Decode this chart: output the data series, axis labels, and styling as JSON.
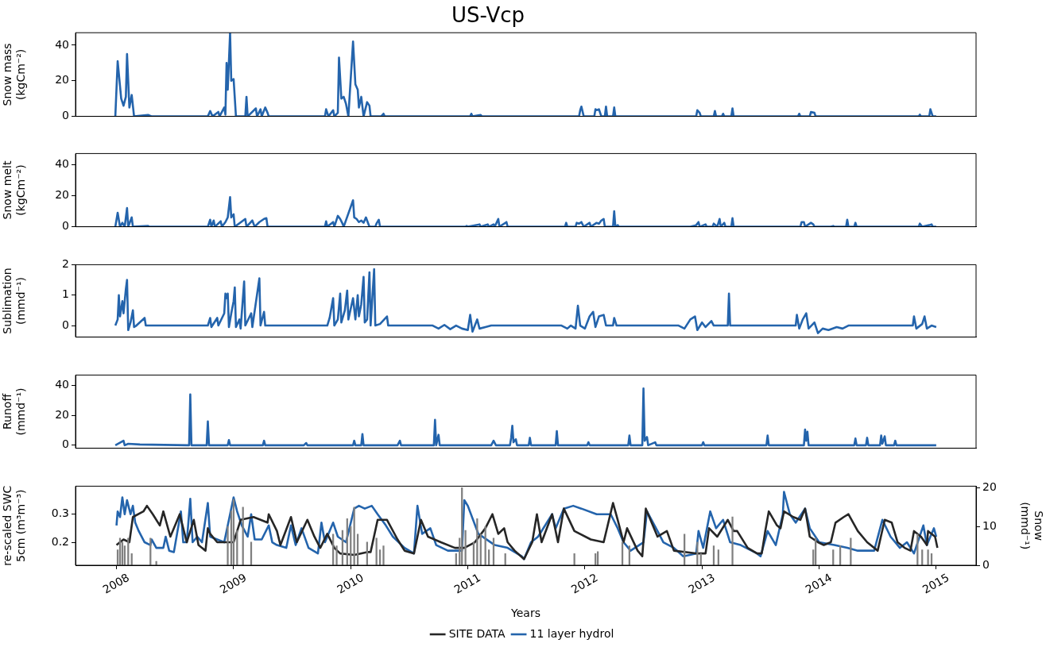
{
  "chart_data": [
    {
      "type": "line",
      "title": "US-Vcp",
      "ylabel": "Snow mass\n(kgCm⁻²)",
      "xlim": [
        2007.65,
        2015.34
      ],
      "ylim": [
        0,
        47
      ],
      "yticks": [
        0,
        20,
        40
      ],
      "tick_labels": "y",
      "series": [
        {
          "color": "#2464ac",
          "x": [
            2007.99,
            2008.01,
            2008.04,
            2008.06,
            2008.08,
            2008.09,
            2008.11,
            2008.13,
            2008.15,
            2008.27,
            2008.3,
            2008.78,
            2008.8,
            2008.82,
            2008.87,
            2008.88,
            2008.92,
            2008.93,
            2008.94,
            2008.95,
            2008.97,
            2008.98,
            2009.0,
            2009.02,
            2009.1,
            2009.11,
            2009.12,
            2009.19,
            2009.2,
            2009.23,
            2009.24,
            2009.27,
            2009.29,
            2009.3,
            2009.78,
            2009.79,
            2009.81,
            2009.85,
            2009.86,
            2009.89,
            2009.9,
            2009.92,
            2009.94,
            2009.96,
            2009.98,
            2010.02,
            2010.04,
            2010.06,
            2010.07,
            2010.09,
            2010.11,
            2010.14,
            2010.16,
            2010.17,
            2010.26,
            2010.28,
            2010.29,
            2011.02,
            2011.03,
            2011.04,
            2011.11,
            2011.12,
            2011.95,
            2011.96,
            2011.97,
            2011.99,
            2012.08,
            2012.09,
            2012.1,
            2012.12,
            2012.14,
            2012.17,
            2012.18,
            2012.19,
            2012.24,
            2012.25,
            2012.26,
            2012.95,
            2012.96,
            2012.98,
            2012.99,
            2013.1,
            2013.11,
            2013.12,
            2013.17,
            2013.18,
            2013.19,
            2013.25,
            2013.26,
            2013.27,
            2013.82,
            2013.83,
            2013.84,
            2013.92,
            2013.93,
            2013.96,
            2013.97,
            2014.85,
            2014.86,
            2014.87,
            2014.94,
            2014.95,
            2014.97,
            2015.0
          ],
          "values": [
            0,
            31,
            10,
            6,
            11,
            35,
            5,
            12,
            0,
            0.8,
            0,
            0,
            3,
            0,
            2.5,
            0,
            5,
            1,
            30,
            15,
            47,
            20,
            21,
            0,
            0,
            11,
            0,
            4.5,
            0,
            4,
            0,
            5,
            2,
            0,
            0,
            4,
            0,
            3.5,
            0,
            2,
            33,
            10,
            11,
            7,
            0,
            42,
            18,
            15,
            5,
            11,
            0,
            8,
            6,
            0,
            0,
            1.5,
            0,
            0,
            1.5,
            0,
            0.8,
            0,
            0,
            3.5,
            5.5,
            0,
            0,
            4,
            3.5,
            4,
            0,
            0,
            5.5,
            0,
            0,
            5,
            0,
            0,
            3.5,
            2,
            0,
            0,
            3,
            0,
            0,
            1.5,
            0,
            0,
            4.5,
            0,
            0,
            1.5,
            0,
            0,
            2.5,
            2,
            0,
            0,
            1,
            0,
            0,
            4,
            0,
            0
          ]
        }
      ]
    },
    {
      "type": "line",
      "ylabel": "Snow melt\n(kgCm⁻²)",
      "xlim": [
        2007.65,
        2015.34
      ],
      "ylim": [
        0,
        47
      ],
      "yticks": [
        0,
        20,
        40
      ],
      "tick_labels": "y",
      "series": [
        {
          "color": "#2464ac",
          "x": [
            2007.99,
            2008.01,
            2008.03,
            2008.05,
            2008.07,
            2008.09,
            2008.1,
            2008.12,
            2008.13,
            2008.14,
            2008.27,
            2008.28,
            2008.78,
            2008.8,
            2008.81,
            2008.83,
            2008.84,
            2008.89,
            2008.9,
            2008.93,
            2008.95,
            2008.97,
            2008.98,
            2009.0,
            2009.01,
            2009.1,
            2009.11,
            2009.16,
            2009.18,
            2009.22,
            2009.26,
            2009.28,
            2009.29,
            2009.78,
            2009.79,
            2009.8,
            2009.85,
            2009.86,
            2009.89,
            2009.91,
            2009.93,
            2009.94,
            2010.02,
            2010.03,
            2010.05,
            2010.07,
            2010.09,
            2010.11,
            2010.13,
            2010.15,
            2010.16,
            2010.21,
            2010.22,
            2010.24,
            2010.25,
            2010.98,
            2010.99,
            2011.0,
            2011.1,
            2011.11,
            2011.17,
            2011.18,
            2011.22,
            2011.23,
            2011.26,
            2011.27,
            2011.33,
            2011.34,
            2011.83,
            2011.84,
            2011.85,
            2011.92,
            2011.93,
            2011.95,
            2011.97,
            2011.99,
            2012.04,
            2012.05,
            2012.1,
            2012.12,
            2012.14,
            2012.16,
            2012.17,
            2012.24,
            2012.25,
            2012.26,
            2012.28,
            2012.29,
            2012.9,
            2012.95,
            2012.97,
            2012.98,
            2013.03,
            2013.04,
            2013.09,
            2013.1,
            2013.13,
            2013.15,
            2013.16,
            2013.19,
            2013.2,
            2013.25,
            2013.26,
            2013.27,
            2013.84,
            2013.85,
            2013.87,
            2013.88,
            2013.91,
            2013.93,
            2013.95,
            2013.96,
            2014.1,
            2014.12,
            2014.13,
            2014.23,
            2014.24,
            2014.25,
            2014.3,
            2014.31,
            2014.32,
            2014.85,
            2014.86,
            2014.88,
            2014.94,
            2014.96,
            2014.97,
            2015.0
          ],
          "values": [
            0,
            9,
            0,
            2.5,
            0,
            12,
            0,
            4,
            6,
            0,
            0.5,
            0,
            0,
            4.5,
            0,
            4,
            0,
            3.5,
            0,
            3,
            6,
            19,
            6,
            8,
            0,
            5,
            0,
            4,
            0,
            3,
            5,
            5.5,
            0,
            0,
            3.5,
            0,
            3,
            0,
            7,
            5,
            2,
            0,
            17,
            6,
            5,
            3,
            4,
            2.5,
            6,
            2,
            0,
            0,
            2,
            4.5,
            0,
            0,
            0.5,
            0,
            1.5,
            0,
            1.5,
            0,
            1.5,
            0,
            5,
            0,
            3,
            0,
            0,
            2.5,
            0,
            0,
            2.5,
            2,
            3,
            0,
            2.5,
            0,
            2.5,
            2,
            4,
            5,
            0,
            0,
            10,
            0,
            1,
            0,
            0,
            1,
            3,
            0,
            1.5,
            0,
            0,
            2,
            0,
            5,
            0,
            2.5,
            0,
            0,
            5.5,
            0,
            0,
            3,
            3,
            0,
            1.5,
            2.5,
            1.5,
            0,
            0,
            0.5,
            0,
            0,
            4.5,
            0,
            0,
            2.5,
            0,
            0,
            2,
            0,
            1,
            1.5,
            0,
            0
          ]
        }
      ]
    },
    {
      "type": "line",
      "ylabel": "Sublimation\n(mmd⁻¹)",
      "xlim": [
        2007.65,
        2015.34
      ],
      "ylim": [
        -0.38,
        2
      ],
      "yticks": [
        0,
        1,
        2
      ],
      "tick_labels": "y",
      "series": [
        {
          "color": "#2464ac",
          "x": [
            2007.99,
            2008.01,
            2008.02,
            2008.03,
            2008.05,
            2008.06,
            2008.08,
            2008.09,
            2008.1,
            2008.12,
            2008.14,
            2008.15,
            2008.17,
            2008.24,
            2008.25,
            2008.3,
            2008.78,
            2008.8,
            2008.81,
            2008.86,
            2008.87,
            2008.92,
            2008.93,
            2008.94,
            2008.95,
            2008.96,
            2008.98,
            2009.0,
            2009.01,
            2009.02,
            2009.05,
            2009.06,
            2009.09,
            2009.1,
            2009.15,
            2009.16,
            2009.22,
            2009.23,
            2009.26,
            2009.27,
            2009.3,
            2009.8,
            2009.82,
            2009.85,
            2009.86,
            2009.89,
            2009.91,
            2009.92,
            2009.95,
            2009.97,
            2009.98,
            2010.02,
            2010.04,
            2010.06,
            2010.07,
            2010.09,
            2010.11,
            2010.12,
            2010.14,
            2010.16,
            2010.17,
            2010.2,
            2010.21,
            2010.25,
            2010.31,
            2010.32,
            2010.7,
            2010.75,
            2010.8,
            2010.85,
            2010.9,
            2010.95,
            2011.0,
            2011.02,
            2011.04,
            2011.08,
            2011.1,
            2011.15,
            2011.2,
            2011.35,
            2011.8,
            2011.85,
            2011.88,
            2011.92,
            2011.94,
            2011.96,
            2012.0,
            2012.04,
            2012.07,
            2012.09,
            2012.12,
            2012.16,
            2012.18,
            2012.24,
            2012.25,
            2012.27,
            2012.8,
            2012.85,
            2012.9,
            2012.94,
            2012.96,
            2013.0,
            2013.03,
            2013.08,
            2013.1,
            2013.22,
            2013.23,
            2013.24,
            2013.8,
            2013.81,
            2013.83,
            2013.86,
            2013.89,
            2013.91,
            2013.96,
            2013.99,
            2014.03,
            2014.08,
            2014.15,
            2014.2,
            2014.25,
            2014.8,
            2014.81,
            2014.83,
            2014.88,
            2014.9,
            2014.92,
            2014.96,
            2015.0
          ],
          "values": [
            0,
            0.2,
            1.0,
            0.3,
            0.8,
            0.4,
            1.2,
            1.5,
            -0.15,
            0.1,
            0.5,
            -0.05,
            0,
            0.25,
            0,
            0,
            0,
            0.25,
            -0.05,
            0.25,
            0,
            0.4,
            1.05,
            0.9,
            1.05,
            -0.05,
            0.4,
            0.8,
            1.25,
            -0.05,
            0.2,
            -0.1,
            1.45,
            0,
            0.4,
            -0.05,
            1.55,
            0,
            0.45,
            0,
            0,
            0,
            0.25,
            0.9,
            0,
            0.2,
            1.05,
            0.1,
            0.5,
            1.15,
            0.2,
            0.9,
            0.2,
            1.0,
            0.3,
            0.7,
            1.6,
            0.1,
            0.2,
            1.75,
            0,
            1.85,
            0,
            0.05,
            0.3,
            0,
            0,
            -0.1,
            0.02,
            -0.12,
            0,
            -0.1,
            -0.15,
            0.35,
            -0.2,
            0.2,
            -0.1,
            -0.05,
            0,
            0,
            0,
            -0.1,
            0,
            -0.1,
            0.65,
            0,
            -0.1,
            0.3,
            0.45,
            -0.05,
            0.3,
            0.35,
            0,
            0,
            0.25,
            0,
            0,
            -0.1,
            0.2,
            0.3,
            -0.15,
            0.1,
            -0.05,
            0.15,
            0,
            0,
            1.05,
            0,
            0,
            0.35,
            -0.1,
            0.2,
            0.4,
            -0.1,
            0.1,
            -0.25,
            -0.1,
            -0.15,
            -0.05,
            -0.1,
            0,
            0,
            0.3,
            -0.1,
            0.05,
            0.3,
            -0.1,
            0,
            -0.05
          ]
        }
      ]
    },
    {
      "type": "line",
      "ylabel": "Runoff\n(mmd⁻¹)",
      "xlim": [
        2007.65,
        2015.34
      ],
      "ylim": [
        -2,
        47
      ],
      "yticks": [
        0,
        20,
        40
      ],
      "tick_labels": "y",
      "series": [
        {
          "color": "#2464ac",
          "x": [
            2007.99,
            2008.06,
            2008.07,
            2008.1,
            2008.2,
            2008.62,
            2008.63,
            2008.64,
            2008.77,
            2008.78,
            2008.79,
            2008.95,
            2008.96,
            2008.97,
            2009.25,
            2009.26,
            2009.27,
            2009.6,
            2009.62,
            2009.63,
            2010.02,
            2010.03,
            2010.04,
            2010.09,
            2010.1,
            2010.11,
            2010.4,
            2010.42,
            2010.43,
            2010.71,
            2010.72,
            2010.73,
            2010.75,
            2010.76,
            2011.2,
            2011.22,
            2011.24,
            2011.36,
            2011.37,
            2011.38,
            2011.39,
            2011.41,
            2011.42,
            2011.52,
            2011.53,
            2011.54,
            2011.75,
            2011.76,
            2011.77,
            2012.02,
            2012.03,
            2012.04,
            2012.37,
            2012.38,
            2012.39,
            2012.49,
            2012.5,
            2012.51,
            2012.53,
            2012.54,
            2012.6,
            2012.61,
            2013.0,
            2013.01,
            2013.02,
            2013.55,
            2013.56,
            2013.57,
            2013.87,
            2013.88,
            2013.89,
            2013.9,
            2013.91,
            2014.3,
            2014.31,
            2014.32,
            2014.4,
            2014.41,
            2014.42,
            2014.52,
            2014.53,
            2014.54,
            2014.56,
            2014.57,
            2014.64,
            2014.65,
            2014.66,
            2015.0
          ],
          "values": [
            0,
            3,
            0,
            1,
            0.5,
            0,
            34,
            0,
            0,
            16,
            0,
            0,
            3.5,
            0,
            0,
            3,
            0,
            0,
            1.5,
            0,
            0,
            3,
            0,
            0,
            7.5,
            0,
            0,
            3,
            0,
            0,
            17,
            0,
            7,
            0,
            0,
            3,
            0,
            0,
            5,
            13,
            2,
            4,
            0,
            0,
            5,
            0,
            0,
            9.5,
            0,
            0,
            2,
            0,
            0,
            6.5,
            0,
            0,
            38,
            3,
            5.5,
            0,
            2,
            0,
            0,
            2,
            0,
            0,
            6.5,
            0,
            0,
            10.5,
            3,
            9,
            0,
            0,
            4.5,
            0,
            0,
            5,
            0,
            0,
            6.5,
            1,
            6,
            0,
            0,
            3,
            0,
            0
          ]
        }
      ]
    },
    {
      "type": "line",
      "ylabel": "re-scaled SWC\n5cm (m³m⁻³)",
      "y2label": "Snow\n(mmd⁻¹)",
      "xlabel": "Years",
      "xlim": [
        2007.65,
        2015.34
      ],
      "xticks": [
        2008,
        2009,
        2010,
        2011,
        2012,
        2013,
        2014,
        2015
      ],
      "ylim": [
        0.118,
        0.4
      ],
      "yticks": [
        0.2,
        0.3
      ],
      "y2lim": [
        0,
        20.4
      ],
      "y2ticks": [
        0,
        10,
        20
      ],
      "legend": "bottom",
      "series": [
        {
          "type": "bar",
          "axis": "y2",
          "color": "#808080",
          "x": [
            2008.01,
            2008.03,
            2008.05,
            2008.07,
            2008.1,
            2008.13,
            2008.29,
            2008.34,
            2008.95,
            2008.98,
            2009.0,
            2009.03,
            2009.08,
            2009.15,
            2009.85,
            2009.88,
            2009.93,
            2009.97,
            2010.0,
            2010.03,
            2010.06,
            2010.14,
            2010.22,
            2010.25,
            2010.28,
            2010.9,
            2010.93,
            2010.95,
            2010.98,
            2011.05,
            2011.08,
            2011.11,
            2011.15,
            2011.18,
            2011.22,
            2011.32,
            2011.91,
            2012.09,
            2012.11,
            2012.32,
            2012.38,
            2012.85,
            2012.96,
            2012.99,
            2013.1,
            2013.14,
            2013.26,
            2013.95,
            2013.97,
            2014.12,
            2014.18,
            2014.27,
            2014.84,
            2014.88,
            2014.93,
            2014.96
          ],
          "values": [
            4,
            7,
            6,
            5,
            7,
            3,
            7,
            1,
            10,
            14,
            17,
            9,
            15,
            6,
            8,
            5,
            9,
            12,
            10,
            15,
            8,
            6,
            7,
            4,
            5,
            3,
            7,
            20,
            9,
            6,
            12,
            8,
            10,
            4,
            7,
            3,
            3,
            3,
            3.5,
            6,
            5,
            8,
            6,
            3,
            5,
            4,
            12.5,
            4,
            7,
            4,
            5,
            7,
            8,
            4,
            4,
            3
          ]
        },
        {
          "name": "11 layer hydrol",
          "color": "#2464ac",
          "x": [
            2008.0,
            2008.01,
            2008.03,
            2008.05,
            2008.07,
            2008.09,
            2008.12,
            2008.14,
            2008.16,
            2008.19,
            2008.24,
            2008.29,
            2008.3,
            2008.34,
            2008.4,
            2008.42,
            2008.45,
            2008.49,
            2008.55,
            2008.57,
            2008.6,
            2008.63,
            2008.65,
            2008.69,
            2008.73,
            2008.78,
            2008.8,
            2008.86,
            2008.92,
            2008.96,
            2009.0,
            2009.03,
            2009.07,
            2009.12,
            2009.15,
            2009.18,
            2009.24,
            2009.3,
            2009.33,
            2009.37,
            2009.45,
            2009.49,
            2009.53,
            2009.58,
            2009.64,
            2009.72,
            2009.75,
            2009.78,
            2009.85,
            2009.89,
            2009.96,
            2010.03,
            2010.07,
            2010.12,
            2010.18,
            2010.23,
            2010.3,
            2010.36,
            2010.46,
            2010.54,
            2010.57,
            2010.61,
            2010.68,
            2010.73,
            2010.83,
            2010.95,
            2010.97,
            2011.0,
            2011.09,
            2011.23,
            2011.34,
            2011.46,
            2011.48,
            2011.54,
            2011.6,
            2011.72,
            2011.75,
            2011.82,
            2011.9,
            2011.97,
            2012.1,
            2012.22,
            2012.28,
            2012.33,
            2012.39,
            2012.5,
            2012.53,
            2012.62,
            2012.67,
            2012.76,
            2012.84,
            2012.95,
            2012.97,
            2013.01,
            2013.07,
            2013.12,
            2013.18,
            2013.24,
            2013.33,
            2013.47,
            2013.5,
            2013.56,
            2013.63,
            2013.69,
            2013.7,
            2013.75,
            2013.8,
            2013.88,
            2013.92,
            2014.0,
            2014.13,
            2014.24,
            2014.33,
            2014.47,
            2014.54,
            2014.61,
            2014.69,
            2014.75,
            2014.81,
            2014.89,
            2014.92,
            2014.98,
            2015.0
          ],
          "values": [
            0.26,
            0.31,
            0.29,
            0.36,
            0.3,
            0.35,
            0.3,
            0.33,
            0.27,
            0.24,
            0.2,
            0.19,
            0.21,
            0.18,
            0.18,
            0.22,
            0.17,
            0.165,
            0.31,
            0.2,
            0.2,
            0.355,
            0.2,
            0.22,
            0.2,
            0.34,
            0.22,
            0.21,
            0.2,
            0.28,
            0.36,
            0.31,
            0.26,
            0.22,
            0.3,
            0.21,
            0.21,
            0.26,
            0.2,
            0.19,
            0.18,
            0.26,
            0.19,
            0.25,
            0.18,
            0.16,
            0.27,
            0.2,
            0.27,
            0.22,
            0.2,
            0.32,
            0.33,
            0.32,
            0.33,
            0.3,
            0.26,
            0.22,
            0.18,
            0.16,
            0.33,
            0.23,
            0.25,
            0.19,
            0.17,
            0.17,
            0.35,
            0.33,
            0.23,
            0.19,
            0.18,
            0.15,
            0.14,
            0.2,
            0.22,
            0.3,
            0.25,
            0.32,
            0.33,
            0.32,
            0.3,
            0.3,
            0.25,
            0.2,
            0.17,
            0.2,
            0.31,
            0.24,
            0.2,
            0.18,
            0.15,
            0.16,
            0.24,
            0.18,
            0.31,
            0.25,
            0.28,
            0.2,
            0.19,
            0.16,
            0.15,
            0.24,
            0.19,
            0.3,
            0.38,
            0.3,
            0.27,
            0.32,
            0.25,
            0.2,
            0.19,
            0.18,
            0.17,
            0.17,
            0.28,
            0.22,
            0.18,
            0.2,
            0.16,
            0.26,
            0.19,
            0.25,
            0.22
          ]
        },
        {
          "name": "SITE DATA",
          "color": "#262626",
          "x": [
            2008.0,
            2008.06,
            2008.11,
            2008.14,
            2008.23,
            2008.26,
            2008.31,
            2008.37,
            2008.4,
            2008.46,
            2008.54,
            2008.6,
            2008.66,
            2008.7,
            2008.76,
            2008.78,
            2008.8,
            2008.86,
            2009.0,
            2009.06,
            2009.17,
            2009.29,
            2009.3,
            2009.37,
            2009.4,
            2009.49,
            2009.54,
            2009.63,
            2009.69,
            2009.74,
            2009.8,
            2009.86,
            2009.91,
            2010.03,
            2010.14,
            2010.17,
            2010.23,
            2010.31,
            2010.4,
            2010.46,
            2010.54,
            2010.6,
            2010.66,
            2010.77,
            2010.89,
            2010.97,
            2011.06,
            2011.15,
            2011.21,
            2011.26,
            2011.31,
            2011.34,
            2011.4,
            2011.48,
            2011.55,
            2011.59,
            2011.63,
            2011.72,
            2011.77,
            2011.82,
            2011.91,
            2012.05,
            2012.16,
            2012.24,
            2012.28,
            2012.33,
            2012.36,
            2012.45,
            2012.49,
            2012.52,
            2012.62,
            2012.7,
            2012.76,
            2012.96,
            2013.03,
            2013.06,
            2013.13,
            2013.22,
            2013.27,
            2013.3,
            2013.39,
            2013.47,
            2013.51,
            2013.54,
            2013.57,
            2013.64,
            2013.67,
            2013.7,
            2013.78,
            2013.84,
            2013.88,
            2013.92,
            2013.99,
            2014.04,
            2014.1,
            2014.14,
            2014.21,
            2014.25,
            2014.33,
            2014.41,
            2014.5,
            2014.56,
            2014.62,
            2014.67,
            2014.73,
            2014.78,
            2014.81,
            2014.87,
            2014.92,
            2014.93,
            2014.99,
            2015.01
          ],
          "values": [
            0.19,
            0.21,
            0.2,
            0.29,
            0.31,
            0.33,
            0.3,
            0.26,
            0.31,
            0.22,
            0.3,
            0.2,
            0.28,
            0.19,
            0.17,
            0.25,
            0.23,
            0.2,
            0.2,
            0.28,
            0.29,
            0.27,
            0.3,
            0.24,
            0.19,
            0.29,
            0.2,
            0.28,
            0.22,
            0.18,
            0.23,
            0.18,
            0.16,
            0.155,
            0.165,
            0.165,
            0.28,
            0.28,
            0.21,
            0.17,
            0.16,
            0.28,
            0.22,
            0.2,
            0.18,
            0.18,
            0.2,
            0.25,
            0.3,
            0.23,
            0.25,
            0.2,
            0.17,
            0.14,
            0.2,
            0.3,
            0.2,
            0.3,
            0.2,
            0.32,
            0.24,
            0.21,
            0.2,
            0.34,
            0.28,
            0.2,
            0.25,
            0.17,
            0.15,
            0.32,
            0.22,
            0.24,
            0.17,
            0.16,
            0.16,
            0.25,
            0.22,
            0.28,
            0.24,
            0.24,
            0.18,
            0.16,
            0.16,
            0.24,
            0.31,
            0.26,
            0.25,
            0.31,
            0.29,
            0.28,
            0.32,
            0.22,
            0.2,
            0.19,
            0.2,
            0.27,
            0.29,
            0.3,
            0.24,
            0.2,
            0.17,
            0.28,
            0.27,
            0.2,
            0.18,
            0.17,
            0.24,
            0.22,
            0.19,
            0.24,
            0.22,
            0.18
          ]
        }
      ]
    }
  ]
}
